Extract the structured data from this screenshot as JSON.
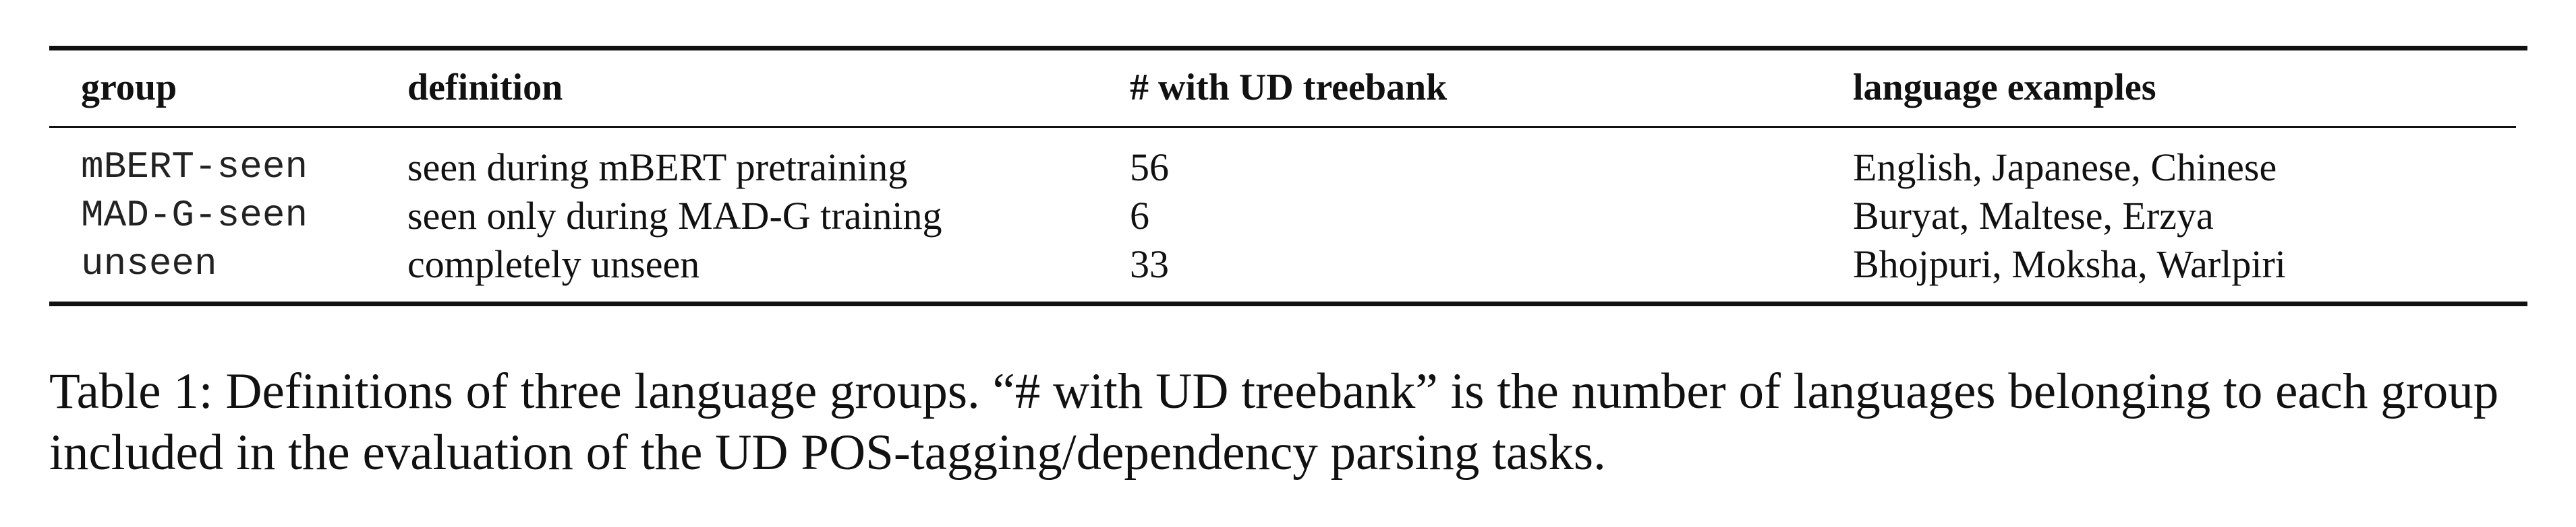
{
  "table": {
    "headers": [
      "group",
      "definition",
      "# with UD treebank",
      "language examples"
    ],
    "rows": [
      {
        "group": "mBERT-seen",
        "definition": "seen during mBERT pretraining",
        "count": "56",
        "examples": "English, Japanese, Chinese"
      },
      {
        "group": "MAD-G-seen",
        "definition": "seen only during MAD-G training",
        "count": "6",
        "examples": "Buryat, Maltese, Erzya"
      },
      {
        "group": "unseen",
        "definition": "completely unseen",
        "count": "33",
        "examples": "Bhojpuri, Moksha, Warlpiri"
      }
    ]
  },
  "caption": "Table 1: Definitions of three language groups. “# with UD treebank” is the number of languages belonging to each group included in the evaluation of the UD POS-tagging/dependency parsing tasks."
}
